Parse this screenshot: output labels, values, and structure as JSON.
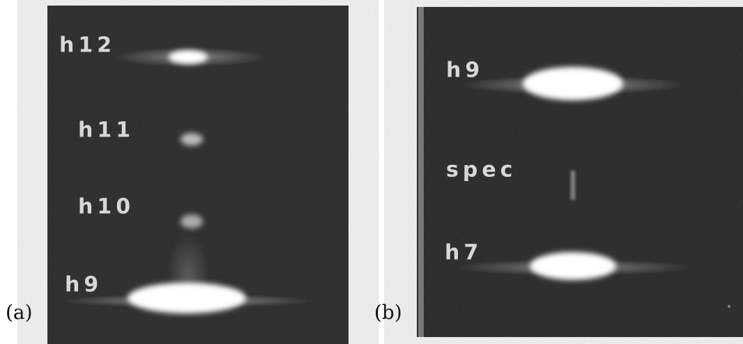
{
  "panels": [
    {
      "label": "(a)",
      "annotations": [
        "h12",
        "h11",
        "h10",
        "h9"
      ]
    },
    {
      "label": "(b)",
      "annotations": [
        "h9",
        "spec",
        "h7"
      ]
    }
  ]
}
